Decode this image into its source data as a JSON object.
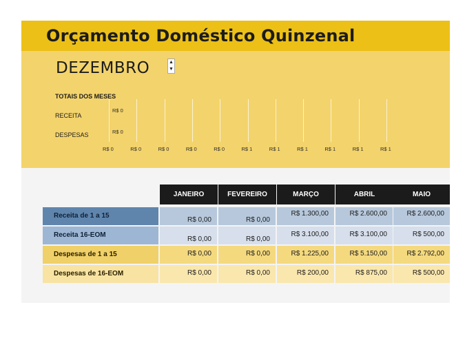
{
  "title": "Orçamento Doméstico Quinzenal",
  "month_selector": {
    "value": "DEZEMBRO",
    "up_icon": "triangle-up",
    "down_icon": "triangle-down"
  },
  "summary_chart": {
    "heading": "TOTAIS DOS MESES",
    "rows": [
      {
        "label": "RECEITA",
        "value": "R$ 0"
      },
      {
        "label": "DESPESAS",
        "value": "R$ 0"
      }
    ],
    "axis_labels": [
      "R$ 0",
      "R$ 0",
      "R$ 0",
      "R$ 0",
      "R$ 0",
      "R$ 1",
      "R$ 1",
      "R$ 1",
      "R$ 1",
      "R$ 1",
      "R$ 1"
    ]
  },
  "table": {
    "columns": [
      "JANEIRO",
      "FEVEREIRO",
      "MARÇO",
      "ABRIL",
      "MAIO"
    ],
    "rows": [
      {
        "label": "Receita de 1 a 15",
        "values": [
          "R$ 0,00",
          "R$ 0,00",
          "R$ 1.300,00",
          "R$ 2.600,00",
          "R$ 2.600,00"
        ]
      },
      {
        "label": "Receita 16-EOM",
        "values": [
          "R$ 0,00",
          "R$ 0,00",
          "R$ 3.100,00",
          "R$ 3.100,00",
          "R$ 500,00"
        ]
      },
      {
        "label": "Despesas de 1 a 15",
        "values": [
          "R$ 0,00",
          "R$ 0,00",
          "R$ 1.225,00",
          "R$ 5.150,00",
          "R$ 2.792,00"
        ]
      },
      {
        "label": "Despesas de 16-EOM",
        "values": [
          "R$ 0,00",
          "R$ 0,00",
          "R$ 200,00",
          "R$ 875,00",
          "R$ 500,00"
        ]
      }
    ]
  }
}
